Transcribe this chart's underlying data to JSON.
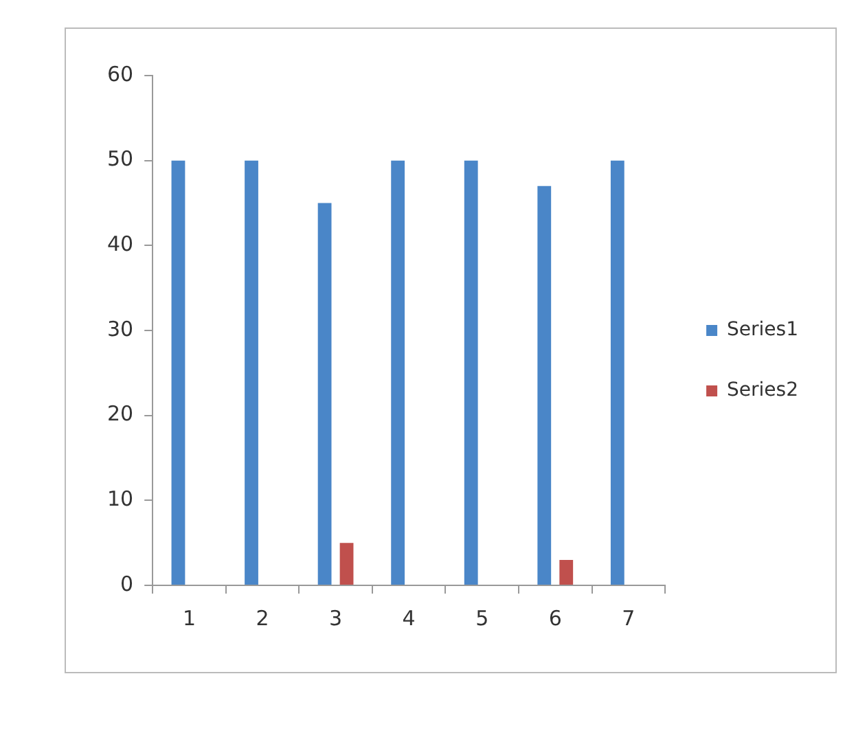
{
  "chart_data": {
    "type": "bar",
    "categories": [
      "1",
      "2",
      "3",
      "4",
      "5",
      "6",
      "7"
    ],
    "series": [
      {
        "name": "Series1",
        "color": "#4a86c8",
        "values": [
          50,
          50,
          45,
          50,
          50,
          47,
          50
        ]
      },
      {
        "name": "Series2",
        "color": "#c0504d",
        "values": [
          0,
          0,
          5,
          0,
          0,
          3,
          0
        ]
      }
    ],
    "ylim": [
      0,
      60
    ],
    "yticks": [
      0,
      10,
      20,
      30,
      40,
      50,
      60
    ],
    "grid": false,
    "legend": "right"
  }
}
